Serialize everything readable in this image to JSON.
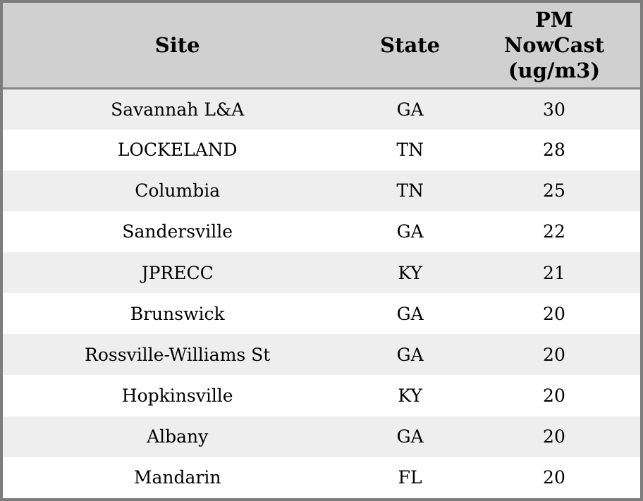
{
  "chart_data": {
    "type": "table",
    "columns": [
      "Site",
      "State",
      "PM NowCast (ug/m3)"
    ],
    "rows": [
      [
        "Savannah L&A",
        "GA",
        30
      ],
      [
        "LOCKELAND",
        "TN",
        28
      ],
      [
        "Columbia",
        "TN",
        25
      ],
      [
        "Sandersville",
        "GA",
        22
      ],
      [
        "JPRECC",
        "KY",
        21
      ],
      [
        "Brunswick",
        "GA",
        20
      ],
      [
        "Rossville-Williams St",
        "GA",
        20
      ],
      [
        "Hopkinsville",
        "KY",
        20
      ],
      [
        "Albany",
        "GA",
        20
      ],
      [
        "Mandarin",
        "FL",
        20
      ]
    ]
  },
  "table": {
    "header": {
      "site": "Site",
      "state": "State",
      "pm": "PM\nNowCast\n(ug/m3)"
    },
    "rows": [
      {
        "site": "Savannah L&A",
        "state": "GA",
        "pm": "30"
      },
      {
        "site": "LOCKELAND",
        "state": "TN",
        "pm": "28"
      },
      {
        "site": "Columbia",
        "state": "TN",
        "pm": "25"
      },
      {
        "site": "Sandersville",
        "state": "GA",
        "pm": "22"
      },
      {
        "site": "JPRECC",
        "state": "KY",
        "pm": "21"
      },
      {
        "site": "Brunswick",
        "state": "GA",
        "pm": "20"
      },
      {
        "site": "Rossville-Williams St",
        "state": "GA",
        "pm": "20"
      },
      {
        "site": "Hopkinsville",
        "state": "KY",
        "pm": "20"
      },
      {
        "site": "Albany",
        "state": "GA",
        "pm": "20"
      },
      {
        "site": "Mandarin",
        "state": "FL",
        "pm": "20"
      }
    ],
    "colors": {
      "header_bg": "#d0d0d0",
      "row_odd_bg": "#eeeeee",
      "row_even_bg": "#ffffff",
      "border": "#7d7d7d",
      "header_separator": "#878787",
      "text": "#000000"
    }
  }
}
